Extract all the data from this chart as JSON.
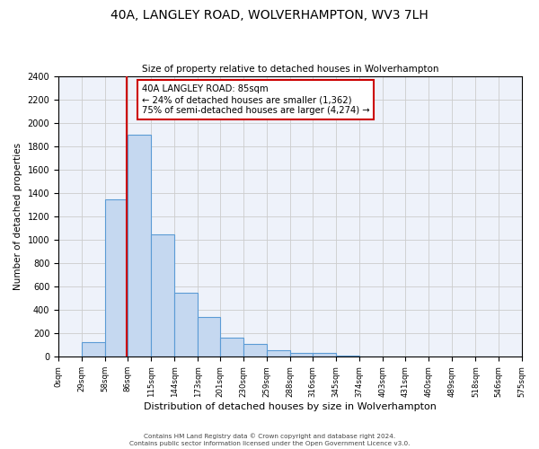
{
  "title": "40A, LANGLEY ROAD, WOLVERHAMPTON, WV3 7LH",
  "subtitle": "Size of property relative to detached houses in Wolverhampton",
  "xlabel": "Distribution of detached houses by size in Wolverhampton",
  "ylabel": "Number of detached properties",
  "bin_labels": [
    "0sqm",
    "29sqm",
    "58sqm",
    "86sqm",
    "115sqm",
    "144sqm",
    "173sqm",
    "201sqm",
    "230sqm",
    "259sqm",
    "288sqm",
    "316sqm",
    "345sqm",
    "374sqm",
    "403sqm",
    "431sqm",
    "460sqm",
    "489sqm",
    "518sqm",
    "546sqm",
    "575sqm"
  ],
  "bar_values": [
    0,
    125,
    1350,
    1900,
    1050,
    550,
    340,
    165,
    110,
    60,
    35,
    30,
    12,
    5,
    0,
    0,
    0,
    0,
    6,
    0,
    0
  ],
  "bar_color": "#c5d8f0",
  "bar_edge_color": "#5b9bd5",
  "property_line_x": 85,
  "property_line_color": "#cc0000",
  "annotation_title": "40A LANGLEY ROAD: 85sqm",
  "annotation_line1": "← 24% of detached houses are smaller (1,362)",
  "annotation_line2": "75% of semi-detached houses are larger (4,274) →",
  "annotation_box_color": "#ffffff",
  "annotation_box_edge": "#cc0000",
  "ylim": [
    0,
    2400
  ],
  "yticks": [
    0,
    200,
    400,
    600,
    800,
    1000,
    1200,
    1400,
    1600,
    1800,
    2000,
    2200,
    2400
  ],
  "footnote1": "Contains HM Land Registry data © Crown copyright and database right 2024.",
  "footnote2": "Contains public sector information licensed under the Open Government Licence v3.0.",
  "background_color": "#ffffff",
  "plot_bg_color": "#eef2fa",
  "grid_color": "#cccccc",
  "bin_edges": [
    0,
    29,
    58,
    86,
    115,
    144,
    173,
    201,
    230,
    259,
    288,
    316,
    345,
    374,
    403,
    431,
    460,
    489,
    518,
    546,
    575
  ]
}
